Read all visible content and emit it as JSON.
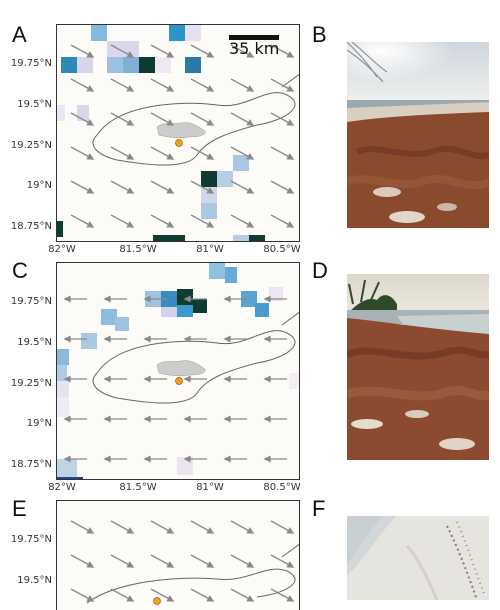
{
  "panels": {
    "A": {
      "letter": "A",
      "arrow_dir": "southeast",
      "land_colors": [
        "#2f8fbf",
        "#0e3c33"
      ]
    },
    "B": {
      "letter": "B",
      "scene": "beach with sargassum accumulation"
    },
    "C": {
      "letter": "C",
      "arrow_dir": "west",
      "land_colors": [
        "#5aa8d6",
        "#0e3c33"
      ]
    },
    "D": {
      "letter": "D",
      "scene": "beach with sargassum accumulation"
    },
    "E": {
      "letter": "E",
      "arrow_dir": "southeast"
    },
    "F": {
      "letter": "F",
      "scene": "clean sandy beach"
    }
  },
  "scale_bar": {
    "label": "35 km"
  },
  "y_ticks": [
    "19.75°N",
    "19.5°N",
    "19.25°N",
    "19°N",
    "18.75°N"
  ],
  "x_ticks": [
    "82°W",
    "81.5°W",
    "81°W",
    "80.5°W"
  ],
  "colors": {
    "frame": "#333333",
    "map_bg": "#fdfbf8",
    "arrow": "#8a8a8a",
    "island": "#cccccc",
    "marker": "#f0a020",
    "contour": "#666666"
  }
}
